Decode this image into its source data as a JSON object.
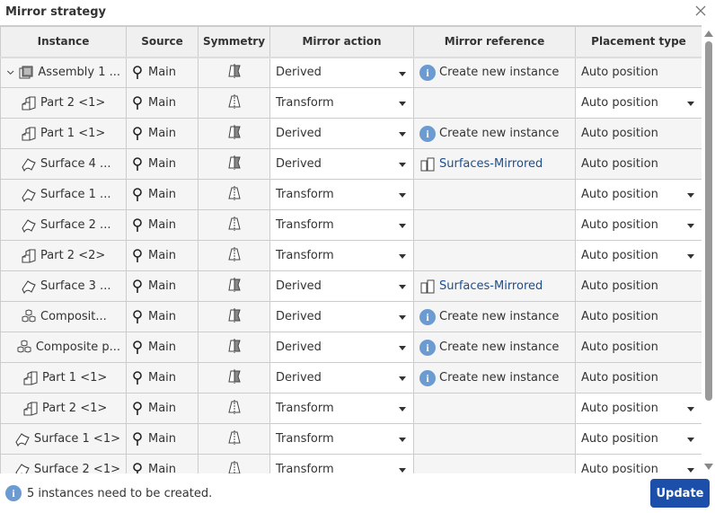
{
  "dialog": {
    "title": "Mirror strategy",
    "status": "5 instances need to be created.",
    "update_label": "Update",
    "accent": "#1b4faa"
  },
  "columns": [
    "Instance",
    "Source",
    "Symmetry",
    "Mirror action",
    "Mirror reference",
    "Placement type"
  ],
  "rows": [
    {
      "name": "Assembly 1 ...",
      "level": 0,
      "expandable": true,
      "icon": "assembly-icon",
      "source": "Main",
      "symmetry": "mirrored",
      "action": "Derived",
      "ref": "Create new instance",
      "refType": "info",
      "placement": "Auto position",
      "placementDropdown": false
    },
    {
      "name": "Part 2 <1>",
      "level": 1,
      "icon": "part-icon",
      "source": "Main",
      "symmetry": "symmetric",
      "action": "Transform",
      "ref": "",
      "refType": "none",
      "placement": "Auto position",
      "placementDropdown": true
    },
    {
      "name": "Part 1 <1>",
      "level": 1,
      "icon": "part-icon",
      "source": "Main",
      "symmetry": "mirrored",
      "action": "Derived",
      "ref": "Create new instance",
      "refType": "info",
      "placement": "Auto position",
      "placementDropdown": false
    },
    {
      "name": "Surface 4 ...",
      "level": 1,
      "icon": "surface-icon",
      "source": "Main",
      "symmetry": "mirrored",
      "action": "Derived",
      "ref": "Surfaces-Mirrored",
      "refType": "link",
      "placement": "Auto position",
      "placementDropdown": false
    },
    {
      "name": "Surface 1 ...",
      "level": 1,
      "icon": "surface-icon",
      "source": "Main",
      "symmetry": "symmetric",
      "action": "Transform",
      "ref": "",
      "refType": "none",
      "placement": "Auto position",
      "placementDropdown": true
    },
    {
      "name": "Surface 2 ...",
      "level": 1,
      "icon": "surface-icon",
      "source": "Main",
      "symmetry": "symmetric",
      "action": "Transform",
      "ref": "",
      "refType": "none",
      "placement": "Auto position",
      "placementDropdown": true
    },
    {
      "name": "Part 2 <2>",
      "level": 1,
      "icon": "part-icon",
      "source": "Main",
      "symmetry": "symmetric",
      "action": "Transform",
      "ref": "",
      "refType": "none",
      "placement": "Auto position",
      "placementDropdown": true
    },
    {
      "name": "Surface 3 ...",
      "level": 1,
      "icon": "surface-icon",
      "source": "Main",
      "symmetry": "mirrored",
      "action": "Derived",
      "ref": "Surfaces-Mirrored",
      "refType": "link",
      "placement": "Auto position",
      "placementDropdown": false
    },
    {
      "name": "Composit...",
      "level": 1,
      "icon": "composite-icon",
      "source": "Main",
      "symmetry": "mirrored",
      "action": "Derived",
      "ref": "Create new instance",
      "refType": "info",
      "placement": "Auto position",
      "placementDropdown": false
    },
    {
      "name": "Composite p...",
      "level": 0,
      "icon": "composite-icon",
      "source": "Main",
      "symmetry": "mirrored",
      "action": "Derived",
      "ref": "Create new instance",
      "refType": "info",
      "placement": "Auto position",
      "placementDropdown": false
    },
    {
      "name": "Part 1 <1>",
      "level": 0,
      "icon": "part-icon",
      "source": "Main",
      "symmetry": "mirrored",
      "action": "Derived",
      "ref": "Create new instance",
      "refType": "info",
      "placement": "Auto position",
      "placementDropdown": false
    },
    {
      "name": "Part 2 <1>",
      "level": 0,
      "icon": "part-icon",
      "source": "Main",
      "symmetry": "symmetric",
      "action": "Transform",
      "ref": "",
      "refType": "none",
      "placement": "Auto position",
      "placementDropdown": true
    },
    {
      "name": "Surface 1 <1>",
      "level": 0,
      "icon": "surface-icon",
      "source": "Main",
      "symmetry": "symmetric",
      "action": "Transform",
      "ref": "",
      "refType": "none",
      "placement": "Auto position",
      "placementDropdown": true
    },
    {
      "name": "Surface 2 <1>",
      "level": 0,
      "icon": "surface-icon",
      "source": "Main",
      "symmetry": "symmetric",
      "action": "Transform",
      "ref": "",
      "refType": "none",
      "placement": "Auto position",
      "placementDropdown": true
    }
  ]
}
